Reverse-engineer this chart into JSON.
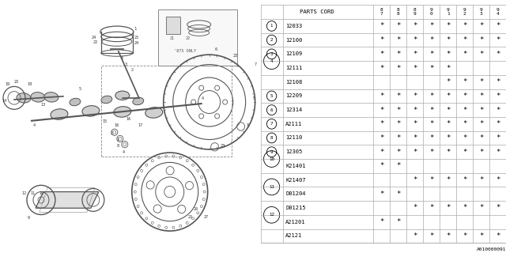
{
  "parts_cord_label": "PARTS CORD",
  "col_headers": [
    "8\n7",
    "8\n8",
    "8\n9",
    "9\n0",
    "9\n1",
    "9\n2",
    "9\n3",
    "9\n4"
  ],
  "rows": [
    {
      "code": "12033",
      "marks": [
        1,
        1,
        1,
        1,
        1,
        1,
        1,
        1
      ]
    },
    {
      "code": "12100",
      "marks": [
        1,
        1,
        1,
        1,
        1,
        1,
        1,
        1
      ]
    },
    {
      "code": "12109",
      "marks": [
        1,
        1,
        1,
        1,
        1,
        1,
        1,
        1
      ]
    },
    {
      "code": "12111",
      "marks": [
        1,
        1,
        1,
        1,
        1,
        0,
        0,
        0
      ]
    },
    {
      "code": "12108",
      "marks": [
        0,
        0,
        0,
        0,
        1,
        1,
        1,
        1
      ]
    },
    {
      "code": "12209",
      "marks": [
        1,
        1,
        1,
        1,
        1,
        1,
        1,
        1
      ]
    },
    {
      "code": "12314",
      "marks": [
        1,
        1,
        1,
        1,
        1,
        1,
        1,
        1
      ]
    },
    {
      "code": "A2111",
      "marks": [
        1,
        1,
        1,
        1,
        1,
        1,
        1,
        1
      ]
    },
    {
      "code": "12110",
      "marks": [
        1,
        1,
        1,
        1,
        1,
        1,
        1,
        1
      ]
    },
    {
      "code": "12305",
      "marks": [
        1,
        1,
        1,
        1,
        1,
        1,
        1,
        1
      ]
    },
    {
      "code": "K21401",
      "marks": [
        1,
        1,
        0,
        0,
        0,
        0,
        0,
        0
      ]
    },
    {
      "code": "K21407",
      "marks": [
        0,
        0,
        1,
        1,
        1,
        1,
        1,
        1
      ]
    },
    {
      "code": "D01204",
      "marks": [
        1,
        1,
        0,
        0,
        0,
        0,
        0,
        0
      ]
    },
    {
      "code": "D01215",
      "marks": [
        0,
        0,
        1,
        1,
        1,
        1,
        1,
        1
      ]
    },
    {
      "code": "A21201",
      "marks": [
        1,
        1,
        0,
        0,
        0,
        0,
        0,
        0
      ]
    },
    {
      "code": "A2121",
      "marks": [
        0,
        0,
        1,
        1,
        1,
        1,
        1,
        1
      ]
    }
  ],
  "groups": [
    {
      "label": "1",
      "rows": [
        0
      ]
    },
    {
      "label": "2",
      "rows": [
        1
      ]
    },
    {
      "label": "3",
      "rows": [
        2
      ]
    },
    {
      "label": "4",
      "rows": [
        3,
        4
      ]
    },
    {
      "label": "5",
      "rows": [
        5
      ]
    },
    {
      "label": "6",
      "rows": [
        6
      ]
    },
    {
      "label": "7",
      "rows": [
        7
      ]
    },
    {
      "label": "8",
      "rows": [
        8
      ]
    },
    {
      "label": "9",
      "rows": [
        9
      ]
    },
    {
      "label": "10",
      "rows": [
        10,
        11
      ]
    },
    {
      "label": "11",
      "rows": [
        12,
        13
      ]
    },
    {
      "label": "12",
      "rows": [
        14,
        15
      ]
    }
  ],
  "footer": "A010000091",
  "grid_color": "#aaaaaa",
  "text_color": "#000000",
  "line_color": "#555555"
}
